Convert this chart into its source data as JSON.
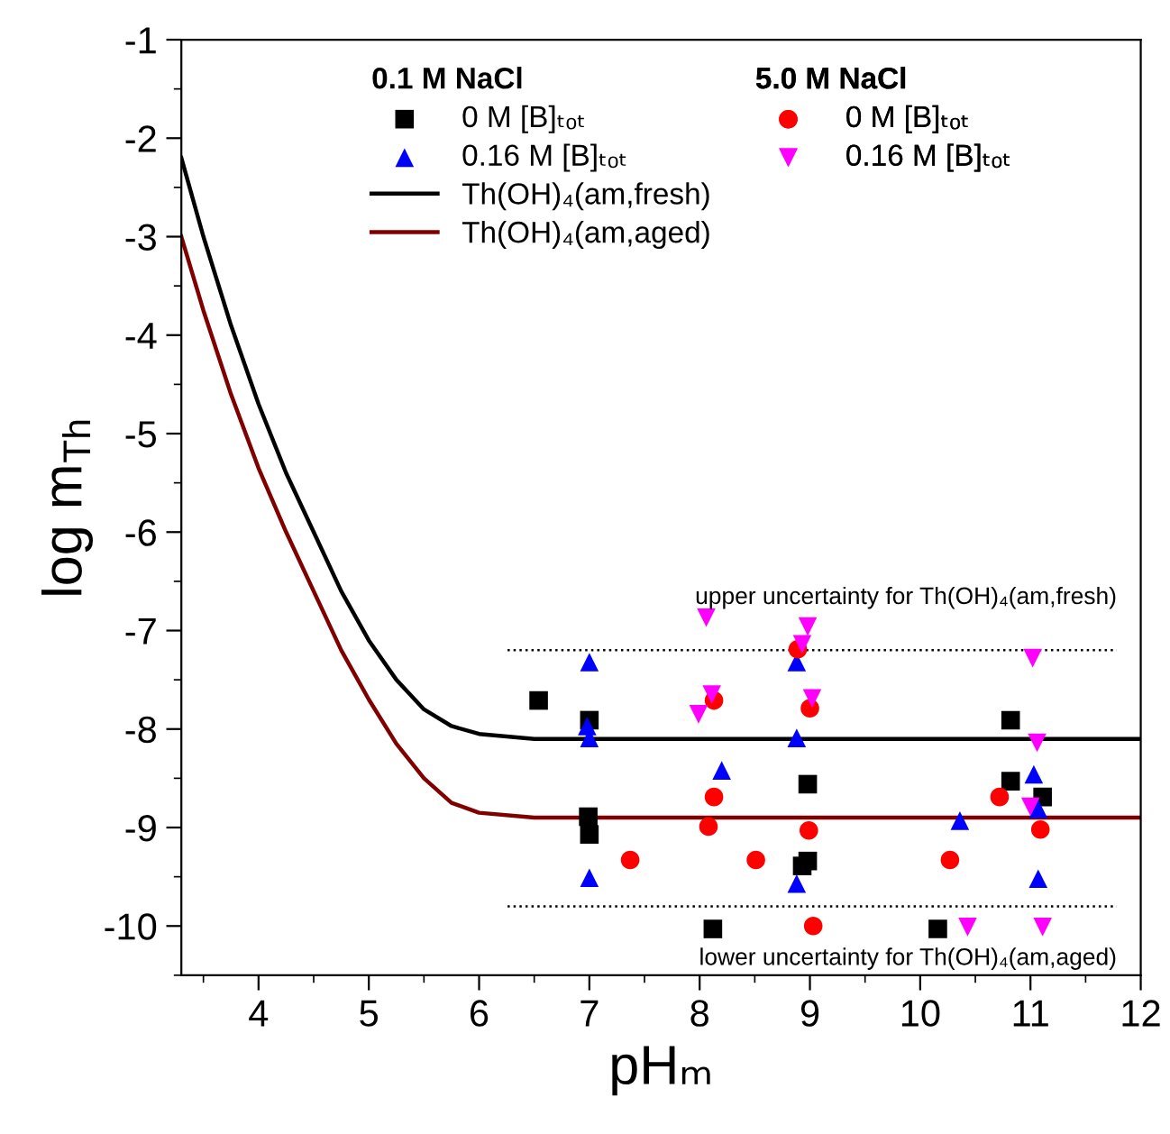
{
  "chart_data": {
    "type": "scatter",
    "xlabel": "pHₘ",
    "ylabel": "log m$_{Th}$",
    "xlim": [
      3.3,
      12
    ],
    "xticks": [
      4,
      5,
      6,
      7,
      8,
      9,
      10,
      11,
      12
    ],
    "ylim": [
      -10.5,
      -1
    ],
    "yticks": [
      -1,
      -2,
      -3,
      -4,
      -5,
      -6,
      -7,
      -8,
      -9,
      -10
    ],
    "legend": "top",
    "legend_title": [
      "0.1 M NaCl",
      "5.0 M NaCl"
    ],
    "grid": false,
    "series": [
      {
        "name": "0 M [B]ₜₒₜ",
        "marker": "square",
        "color": "#000000",
        "x": [
          6.54,
          7.0,
          6.99,
          7.0,
          8.98,
          8.98,
          8.93,
          8.12,
          10.16,
          10.82,
          10.82,
          11.11
        ],
        "values": [
          -7.71,
          -7.91,
          -8.89,
          -9.07,
          -8.56,
          -9.34,
          -9.39,
          -10.03,
          -10.03,
          -7.91,
          -8.53,
          -8.69
        ]
      },
      {
        "name": "0.16 M [B]ₜₒₜ",
        "marker": "triangle",
        "color": "#0000ff",
        "x": [
          7.0,
          6.98,
          7.0,
          7.0,
          8.2,
          8.88,
          8.88,
          8.88,
          10.36,
          11.03,
          11.07,
          11.07
        ],
        "values": [
          -7.32,
          -7.97,
          -8.09,
          -9.51,
          -8.42,
          -7.32,
          -8.09,
          -9.57,
          -8.93,
          -8.46,
          -8.81,
          -9.52
        ]
      },
      {
        "name": "Th(OH)₄(am,fresh)",
        "type": "line",
        "marker": "none",
        "line_style": "solid",
        "color": "#000000",
        "x": [
          3.3,
          3.5,
          3.75,
          4,
          4.25,
          4.5,
          4.75,
          5,
          5.25,
          5.5,
          5.75,
          6,
          6.5,
          12
        ],
        "values": [
          -2.2,
          -3.0,
          -3.9,
          -4.7,
          -5.4,
          -6.0,
          -6.6,
          -7.1,
          -7.5,
          -7.8,
          -7.97,
          -8.05,
          -8.1,
          -8.1
        ]
      },
      {
        "name": "Th(OH)₄(am,aged)",
        "type": "line",
        "marker": "none",
        "line_style": "solid",
        "color": "#800000",
        "x": [
          3.3,
          3.5,
          3.75,
          4,
          4.25,
          4.5,
          4.75,
          5,
          5.25,
          5.5,
          5.75,
          6,
          6.5,
          12
        ],
        "values": [
          -3.0,
          -3.75,
          -4.6,
          -5.35,
          -6.0,
          -6.6,
          -7.2,
          -7.7,
          -8.15,
          -8.5,
          -8.75,
          -8.85,
          -8.9,
          -8.9
        ]
      },
      {
        "name": "0 M [B]ₜₒₜ",
        "marker": "circle",
        "color": "#ff0000",
        "x": [
          8.89,
          8.13,
          9.0,
          8.13,
          8.08,
          8.99,
          7.37,
          8.51,
          10.27,
          10.72,
          11.09,
          9.03
        ],
        "values": [
          -7.19,
          -7.71,
          -7.79,
          -8.69,
          -8.99,
          -9.03,
          -9.33,
          -9.33,
          -9.33,
          -8.69,
          -9.02,
          -10.0
        ]
      },
      {
        "name": "0.16 M [B]ₜₒₜ",
        "marker": "triangle_down",
        "color": "#ff00ff",
        "x": [
          8.06,
          8.98,
          8.93,
          8.11,
          7.99,
          9.02,
          11.02,
          11.06,
          11.0,
          10.43,
          11.11
        ],
        "values": [
          -6.87,
          -6.96,
          -7.14,
          -7.65,
          -7.85,
          -7.69,
          -7.28,
          -8.14,
          -8.79,
          -10.01,
          -10.01
        ]
      }
    ],
    "ref_lines": [
      {
        "axis": "y",
        "value": -7.2,
        "label": "upper uncertainty for Th(OH)₄(am,fresh)",
        "color": "#000000",
        "line_style": "dotted"
      },
      {
        "axis": "y",
        "value": -9.8,
        "label": "lower uncertainty for Th(OH)₄(am,aged)",
        "color": "#000000",
        "line_style": "dotted"
      }
    ]
  }
}
